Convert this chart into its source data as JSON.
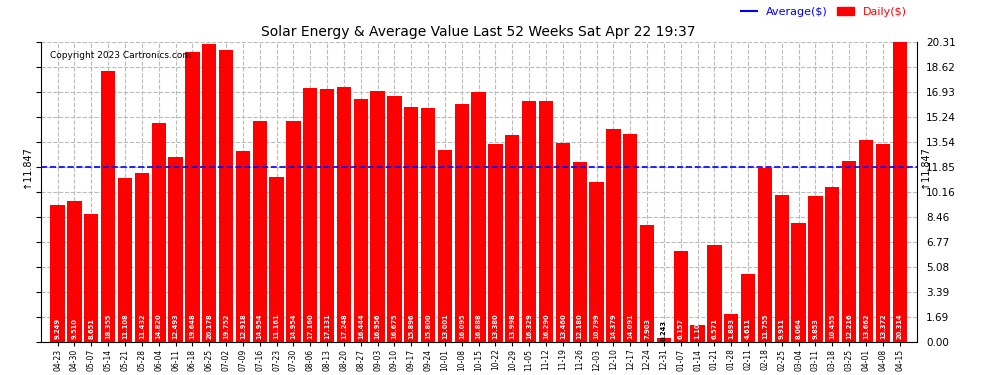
{
  "title": "Solar Energy & Average Value Last 52 Weeks Sat Apr 22 19:37",
  "copyright": "Copyright 2023 Cartronics.com",
  "legend_average": "Average($)",
  "legend_daily": "Daily($)",
  "average_line": 11.847,
  "bar_color": "#ff0000",
  "average_line_color": "#0000ff",
  "background_color": "#ffffff",
  "plot_bg_color": "#ffffff",
  "grid_color": "#bbbbbb",
  "ylim": [
    0.0,
    20.31
  ],
  "yticks": [
    0.0,
    1.69,
    3.39,
    5.08,
    6.77,
    8.46,
    10.16,
    11.85,
    13.54,
    15.24,
    16.93,
    18.62,
    20.31
  ],
  "categories": [
    "04-23",
    "04-30",
    "05-07",
    "05-14",
    "05-21",
    "05-28",
    "06-04",
    "06-11",
    "06-18",
    "06-25",
    "07-02",
    "07-09",
    "07-16",
    "07-23",
    "07-30",
    "08-06",
    "08-13",
    "08-20",
    "08-27",
    "09-03",
    "09-10",
    "09-17",
    "09-24",
    "10-01",
    "10-08",
    "10-15",
    "10-22",
    "10-29",
    "11-05",
    "11-12",
    "11-19",
    "11-26",
    "12-03",
    "12-10",
    "12-17",
    "12-24",
    "12-31",
    "01-07",
    "01-14",
    "01-21",
    "01-28",
    "02-11",
    "02-18",
    "02-25",
    "03-04",
    "03-11",
    "03-18",
    "03-25",
    "04-01",
    "04-08",
    "04-15"
  ],
  "values": [
    9.249,
    9.51,
    8.651,
    18.355,
    11.108,
    11.432,
    14.82,
    12.493,
    19.648,
    20.178,
    19.752,
    12.918,
    14.954,
    11.161,
    14.954,
    17.16,
    17.131,
    17.248,
    16.444,
    16.956,
    16.675,
    15.896,
    15.8,
    13.001,
    16.095,
    16.888,
    13.38,
    13.998,
    16.329,
    16.29,
    13.46,
    12.18,
    10.799,
    14.379,
    14.091,
    7.903,
    0.243,
    6.157,
    1.106,
    6.571,
    1.893,
    4.611,
    11.755,
    9.911,
    8.064,
    9.853,
    10.455,
    12.216,
    13.662,
    13.372,
    20.314
  ],
  "value_labels": [
    "9.249",
    "9.510",
    "8.651",
    "18.355",
    "11.108",
    "11.432",
    "14.820",
    "12.493",
    "19.648",
    "20.178",
    "19.752",
    "12.918",
    "14.954",
    "11.161",
    "14.954",
    "17.160",
    "17.131",
    "17.248",
    "16.444",
    "16.956",
    "16.675",
    "15.896",
    "15.800",
    "13.001",
    "16.095",
    "16.888",
    "13.380",
    "13.998",
    "16.329",
    "16.290",
    "13.460",
    "12.180",
    "10.799",
    "14.379",
    "14.091",
    "7.903",
    "0.243",
    "6.157",
    "1.106",
    "6.571",
    "1.893",
    "4.611",
    "11.755",
    "9.911",
    "8.064",
    "9.853",
    "10.455",
    "12.216",
    "13.662",
    "13.372",
    "20.314"
  ]
}
